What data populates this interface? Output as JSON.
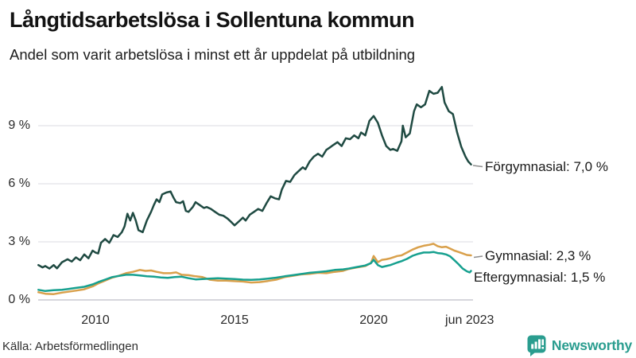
{
  "header": {
    "title": "Långtidsarbetslösa i Sollentuna kommun",
    "subtitle": "Andel som varit arbetslösa i minst ett år uppdelat på utbildning"
  },
  "footer": {
    "source": "Källa: Arbetsförmedlingen",
    "brand": "Newsworthy",
    "brand_color": "#2a9d8f"
  },
  "chart_data": {
    "type": "line",
    "title": "Långtidsarbetslösa i Sollentuna kommun",
    "subtitle": "Andel som varit arbetslösa i minst ett år uppdelat på utbildning",
    "x_unit": "year (decimal, monthly data 2008 – jun 2023)",
    "x_range": [
      2007.95,
      2023.5
    ],
    "ylim": [
      0,
      11.6
    ],
    "grid": "horizontal",
    "legend_position": "right-end-labels",
    "y_ticks": [
      {
        "value": 0,
        "label": "0 %"
      },
      {
        "value": 3,
        "label": "3 %"
      },
      {
        "value": 6,
        "label": "6 %"
      },
      {
        "value": 9,
        "label": "9 %"
      }
    ],
    "x_ticks": [
      {
        "value": 2010,
        "label": "2010"
      },
      {
        "value": 2015,
        "label": "2015"
      },
      {
        "value": 2020,
        "label": "2020"
      },
      {
        "value": 2023.45,
        "label": "jun 2023"
      }
    ],
    "series": [
      {
        "name": "Förgymnasial",
        "color": "#1f4a42",
        "end_value": 7.0,
        "end_label": "Förgymnasial: 7,0 %",
        "points": [
          [
            2007.95,
            1.8
          ],
          [
            2008.1,
            1.68
          ],
          [
            2008.2,
            1.75
          ],
          [
            2008.35,
            1.62
          ],
          [
            2008.5,
            1.8
          ],
          [
            2008.62,
            1.63
          ],
          [
            2008.8,
            1.95
          ],
          [
            2009.0,
            2.1
          ],
          [
            2009.15,
            1.98
          ],
          [
            2009.3,
            2.2
          ],
          [
            2009.45,
            2.05
          ],
          [
            2009.6,
            2.35
          ],
          [
            2009.75,
            2.15
          ],
          [
            2009.9,
            2.55
          ],
          [
            2010.0,
            2.45
          ],
          [
            2010.1,
            2.4
          ],
          [
            2010.2,
            2.95
          ],
          [
            2010.35,
            3.15
          ],
          [
            2010.5,
            2.95
          ],
          [
            2010.65,
            3.35
          ],
          [
            2010.8,
            3.25
          ],
          [
            2010.95,
            3.5
          ],
          [
            2011.05,
            3.8
          ],
          [
            2011.15,
            4.45
          ],
          [
            2011.25,
            4.1
          ],
          [
            2011.35,
            4.5
          ],
          [
            2011.45,
            4.1
          ],
          [
            2011.55,
            3.6
          ],
          [
            2011.7,
            3.5
          ],
          [
            2011.85,
            4.1
          ],
          [
            2012.0,
            4.55
          ],
          [
            2012.1,
            4.9
          ],
          [
            2012.2,
            5.2
          ],
          [
            2012.3,
            5.05
          ],
          [
            2012.4,
            5.45
          ],
          [
            2012.55,
            5.55
          ],
          [
            2012.7,
            5.6
          ],
          [
            2012.8,
            5.3
          ],
          [
            2012.9,
            5.05
          ],
          [
            2013.05,
            5.0
          ],
          [
            2013.15,
            5.1
          ],
          [
            2013.25,
            4.6
          ],
          [
            2013.35,
            4.55
          ],
          [
            2013.5,
            4.8
          ],
          [
            2013.6,
            5.05
          ],
          [
            2013.75,
            4.9
          ],
          [
            2013.9,
            4.75
          ],
          [
            2014.0,
            4.8
          ],
          [
            2014.15,
            4.7
          ],
          [
            2014.3,
            4.55
          ],
          [
            2014.45,
            4.4
          ],
          [
            2014.6,
            4.35
          ],
          [
            2014.75,
            4.2
          ],
          [
            2014.9,
            4.0
          ],
          [
            2015.0,
            3.85
          ],
          [
            2015.15,
            4.05
          ],
          [
            2015.3,
            4.25
          ],
          [
            2015.4,
            4.1
          ],
          [
            2015.55,
            4.4
          ],
          [
            2015.7,
            4.55
          ],
          [
            2015.85,
            4.7
          ],
          [
            2016.0,
            4.6
          ],
          [
            2016.15,
            5.0
          ],
          [
            2016.3,
            5.35
          ],
          [
            2016.45,
            5.25
          ],
          [
            2016.6,
            5.2
          ],
          [
            2016.7,
            5.7
          ],
          [
            2016.85,
            6.15
          ],
          [
            2017.0,
            6.1
          ],
          [
            2017.15,
            6.45
          ],
          [
            2017.3,
            6.65
          ],
          [
            2017.45,
            6.85
          ],
          [
            2017.55,
            6.75
          ],
          [
            2017.7,
            7.15
          ],
          [
            2017.85,
            7.4
          ],
          [
            2018.0,
            7.55
          ],
          [
            2018.15,
            7.4
          ],
          [
            2018.3,
            7.75
          ],
          [
            2018.45,
            7.9
          ],
          [
            2018.55,
            8.0
          ],
          [
            2018.7,
            8.15
          ],
          [
            2018.85,
            7.95
          ],
          [
            2019.0,
            8.35
          ],
          [
            2019.15,
            8.3
          ],
          [
            2019.3,
            8.5
          ],
          [
            2019.45,
            8.35
          ],
          [
            2019.55,
            8.65
          ],
          [
            2019.7,
            8.5
          ],
          [
            2019.85,
            9.25
          ],
          [
            2020.0,
            9.5
          ],
          [
            2020.15,
            9.15
          ],
          [
            2020.3,
            8.5
          ],
          [
            2020.45,
            7.95
          ],
          [
            2020.6,
            7.75
          ],
          [
            2020.7,
            7.8
          ],
          [
            2020.85,
            7.7
          ],
          [
            2021.0,
            8.2
          ],
          [
            2021.05,
            9.0
          ],
          [
            2021.15,
            8.4
          ],
          [
            2021.3,
            8.6
          ],
          [
            2021.45,
            9.75
          ],
          [
            2021.55,
            10.1
          ],
          [
            2021.7,
            9.95
          ],
          [
            2021.85,
            10.1
          ],
          [
            2022.0,
            10.8
          ],
          [
            2022.15,
            10.65
          ],
          [
            2022.3,
            10.7
          ],
          [
            2022.45,
            11.0
          ],
          [
            2022.55,
            10.2
          ],
          [
            2022.7,
            9.75
          ],
          [
            2022.85,
            9.6
          ],
          [
            2023.0,
            8.65
          ],
          [
            2023.15,
            7.9
          ],
          [
            2023.3,
            7.4
          ],
          [
            2023.4,
            7.15
          ],
          [
            2023.5,
            7.0
          ]
        ]
      },
      {
        "name": "Gymnasial",
        "color": "#d9a04b",
        "end_value": 2.3,
        "end_label": "Gymnasial: 2,3 %",
        "points": [
          [
            2007.95,
            0.4
          ],
          [
            2008.2,
            0.32
          ],
          [
            2008.5,
            0.3
          ],
          [
            2008.8,
            0.38
          ],
          [
            2009.0,
            0.42
          ],
          [
            2009.3,
            0.48
          ],
          [
            2009.6,
            0.55
          ],
          [
            2009.9,
            0.7
          ],
          [
            2010.1,
            0.85
          ],
          [
            2010.35,
            1.0
          ],
          [
            2010.6,
            1.15
          ],
          [
            2010.85,
            1.25
          ],
          [
            2011.1,
            1.38
          ],
          [
            2011.35,
            1.45
          ],
          [
            2011.6,
            1.55
          ],
          [
            2011.8,
            1.5
          ],
          [
            2012.0,
            1.52
          ],
          [
            2012.2,
            1.45
          ],
          [
            2012.45,
            1.38
          ],
          [
            2012.7,
            1.38
          ],
          [
            2012.9,
            1.42
          ],
          [
            2013.1,
            1.3
          ],
          [
            2013.35,
            1.28
          ],
          [
            2013.6,
            1.22
          ],
          [
            2013.85,
            1.18
          ],
          [
            2014.1,
            1.05
          ],
          [
            2014.4,
            1.0
          ],
          [
            2014.7,
            1.0
          ],
          [
            2015.0,
            0.97
          ],
          [
            2015.3,
            0.95
          ],
          [
            2015.6,
            0.9
          ],
          [
            2015.9,
            0.92
          ],
          [
            2016.2,
            0.98
          ],
          [
            2016.5,
            1.05
          ],
          [
            2016.8,
            1.18
          ],
          [
            2017.1,
            1.25
          ],
          [
            2017.4,
            1.32
          ],
          [
            2017.7,
            1.35
          ],
          [
            2018.0,
            1.4
          ],
          [
            2018.3,
            1.38
          ],
          [
            2018.6,
            1.45
          ],
          [
            2018.9,
            1.5
          ],
          [
            2019.1,
            1.6
          ],
          [
            2019.4,
            1.68
          ],
          [
            2019.7,
            1.75
          ],
          [
            2019.9,
            1.9
          ],
          [
            2020.0,
            2.27
          ],
          [
            2020.15,
            1.95
          ],
          [
            2020.3,
            2.07
          ],
          [
            2020.45,
            2.1
          ],
          [
            2020.6,
            2.15
          ],
          [
            2020.85,
            2.27
          ],
          [
            2021.0,
            2.3
          ],
          [
            2021.2,
            2.45
          ],
          [
            2021.4,
            2.6
          ],
          [
            2021.6,
            2.72
          ],
          [
            2021.8,
            2.8
          ],
          [
            2022.0,
            2.85
          ],
          [
            2022.15,
            2.9
          ],
          [
            2022.3,
            2.78
          ],
          [
            2022.45,
            2.72
          ],
          [
            2022.6,
            2.75
          ],
          [
            2022.75,
            2.65
          ],
          [
            2022.9,
            2.55
          ],
          [
            2023.05,
            2.48
          ],
          [
            2023.2,
            2.4
          ],
          [
            2023.35,
            2.32
          ],
          [
            2023.5,
            2.3
          ]
        ]
      },
      {
        "name": "Eftergymnasial",
        "color": "#16a08f",
        "end_value": 1.5,
        "end_label": "Eftergymnasial: 1,5 %",
        "points": [
          [
            2007.95,
            0.52
          ],
          [
            2008.2,
            0.46
          ],
          [
            2008.5,
            0.5
          ],
          [
            2008.8,
            0.52
          ],
          [
            2009.0,
            0.56
          ],
          [
            2009.3,
            0.62
          ],
          [
            2009.6,
            0.68
          ],
          [
            2009.9,
            0.8
          ],
          [
            2010.1,
            0.92
          ],
          [
            2010.35,
            1.05
          ],
          [
            2010.6,
            1.18
          ],
          [
            2010.85,
            1.24
          ],
          [
            2011.1,
            1.3
          ],
          [
            2011.35,
            1.3
          ],
          [
            2011.6,
            1.26
          ],
          [
            2011.85,
            1.22
          ],
          [
            2012.1,
            1.2
          ],
          [
            2012.35,
            1.16
          ],
          [
            2012.6,
            1.14
          ],
          [
            2012.85,
            1.18
          ],
          [
            2013.1,
            1.2
          ],
          [
            2013.35,
            1.12
          ],
          [
            2013.6,
            1.06
          ],
          [
            2013.85,
            1.08
          ],
          [
            2014.1,
            1.1
          ],
          [
            2014.4,
            1.12
          ],
          [
            2014.7,
            1.1
          ],
          [
            2015.0,
            1.08
          ],
          [
            2015.3,
            1.05
          ],
          [
            2015.6,
            1.04
          ],
          [
            2015.9,
            1.06
          ],
          [
            2016.2,
            1.1
          ],
          [
            2016.5,
            1.15
          ],
          [
            2016.8,
            1.22
          ],
          [
            2017.1,
            1.28
          ],
          [
            2017.4,
            1.34
          ],
          [
            2017.7,
            1.4
          ],
          [
            2018.0,
            1.44
          ],
          [
            2018.3,
            1.48
          ],
          [
            2018.6,
            1.55
          ],
          [
            2018.9,
            1.58
          ],
          [
            2019.1,
            1.62
          ],
          [
            2019.4,
            1.7
          ],
          [
            2019.7,
            1.78
          ],
          [
            2019.9,
            1.9
          ],
          [
            2020.0,
            2.07
          ],
          [
            2020.15,
            1.8
          ],
          [
            2020.3,
            1.7
          ],
          [
            2020.45,
            1.75
          ],
          [
            2020.6,
            1.8
          ],
          [
            2020.85,
            1.93
          ],
          [
            2021.0,
            2.0
          ],
          [
            2021.2,
            2.12
          ],
          [
            2021.4,
            2.28
          ],
          [
            2021.6,
            2.38
          ],
          [
            2021.8,
            2.45
          ],
          [
            2022.0,
            2.45
          ],
          [
            2022.15,
            2.48
          ],
          [
            2022.3,
            2.42
          ],
          [
            2022.45,
            2.4
          ],
          [
            2022.6,
            2.35
          ],
          [
            2022.75,
            2.25
          ],
          [
            2022.9,
            2.05
          ],
          [
            2023.05,
            1.85
          ],
          [
            2023.2,
            1.62
          ],
          [
            2023.35,
            1.48
          ],
          [
            2023.45,
            1.42
          ],
          [
            2023.5,
            1.5
          ]
        ]
      }
    ]
  }
}
